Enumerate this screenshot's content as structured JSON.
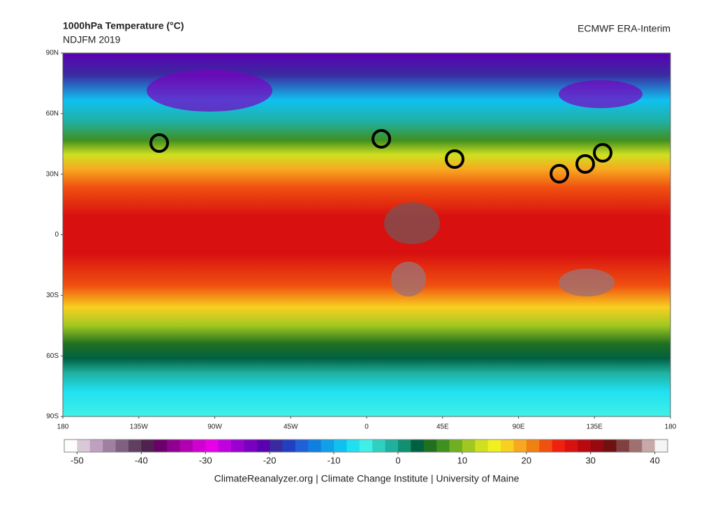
{
  "header": {
    "title": "1000hPa Temperature (°C)",
    "subtitle": "NDJFM 2019",
    "source": "ECMWF ERA-Interim"
  },
  "map": {
    "lon_range": [
      -180,
      180
    ],
    "lat_range": [
      -90,
      90
    ],
    "lat_ticks": [
      {
        "value": 90,
        "label": "90N"
      },
      {
        "value": 60,
        "label": "60N"
      },
      {
        "value": 30,
        "label": "30N"
      },
      0,
      {
        "value": -30,
        "label": "30S"
      },
      {
        "value": -60,
        "label": "60S"
      },
      {
        "value": -90,
        "label": "90S"
      }
    ],
    "lon_ticks": [
      {
        "value": -180,
        "label": "180"
      },
      {
        "value": -135,
        "label": "135W"
      },
      {
        "value": -90,
        "label": "90W"
      },
      {
        "value": -45,
        "label": "45W"
      },
      0,
      {
        "value": 45,
        "label": "45E"
      },
      {
        "value": 90,
        "label": "90E"
      },
      {
        "value": 135,
        "label": "135E"
      },
      180
    ]
  },
  "colorbar": {
    "lim": [
      -52,
      42
    ],
    "ticks": [
      -50,
      -40,
      -30,
      -20,
      -10,
      0,
      10,
      20,
      30,
      40
    ],
    "colors": [
      "#fdfdfd",
      "#d8c8d8",
      "#c0a0c0",
      "#a080a0",
      "#806080",
      "#604060",
      "#502050",
      "#6a006a",
      "#900090",
      "#b000b0",
      "#d000d0",
      "#e800e8",
      "#c000e0",
      "#9a00d0",
      "#7a00c0",
      "#5a00b0",
      "#3a2aa0",
      "#2040c0",
      "#2060d8",
      "#1080e0",
      "#10a0e8",
      "#10c0f0",
      "#20e0f0",
      "#40f0e8",
      "#30d0c0",
      "#20b0a0",
      "#109070",
      "#006040",
      "#207020",
      "#409020",
      "#70b020",
      "#a0c820",
      "#d0e020",
      "#f0f020",
      "#f8d020",
      "#f8a820",
      "#f08010",
      "#f05010",
      "#f02010",
      "#d81010",
      "#b80810",
      "#980810",
      "#701010",
      "#804040",
      "#a07070",
      "#c8a8a8",
      "#f4f4f4"
    ]
  },
  "footer": "ClimateReanalyzer.org | Climate Change Institute | University of Maine"
}
